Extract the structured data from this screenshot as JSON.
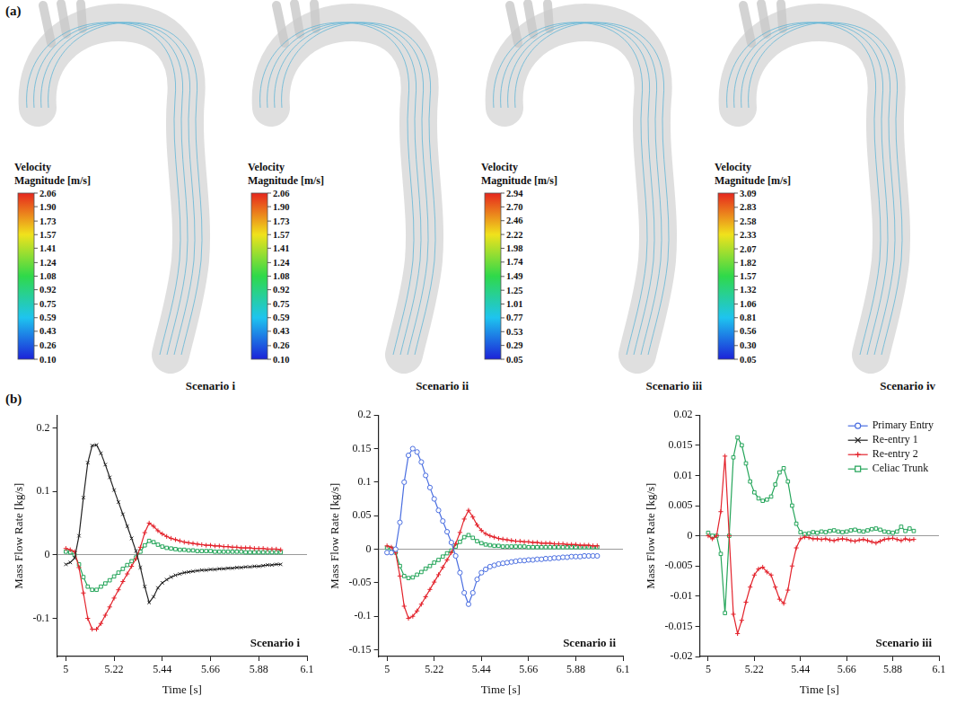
{
  "panel_a": {
    "label": "(a)",
    "scenarios": [
      {
        "title": "Scenario i",
        "colorbar": {
          "title": "Velocity Magnitude [m/s]",
          "range": [
            0.1,
            2.06
          ],
          "ticks": [
            2.06,
            {
              "value": 1.9,
              "label": "1.90"
            },
            1.73,
            1.57,
            1.41,
            1.24,
            1.08,
            0.92,
            0.75,
            0.59,
            0.43,
            0.26,
            {
              "value": 0.1,
              "label": "0.10"
            }
          ]
        }
      },
      {
        "title": "Scenario ii",
        "colorbar": {
          "title": "Velocity Magnitude [m/s]",
          "range": [
            0.1,
            2.06
          ],
          "ticks": [
            2.06,
            {
              "value": 1.9,
              "label": "1.90"
            },
            1.73,
            1.57,
            1.41,
            1.24,
            1.08,
            0.92,
            0.75,
            0.59,
            0.43,
            0.26,
            {
              "value": 0.1,
              "label": "0.10"
            }
          ]
        }
      },
      {
        "title": "Scenario iii",
        "colorbar": {
          "title": "Velocity Magnitude [m/s]",
          "range": [
            0.05,
            2.94
          ],
          "ticks": [
            2.94,
            {
              "value": 2.7,
              "label": "2.70"
            },
            2.46,
            2.22,
            1.98,
            1.74,
            1.49,
            1.25,
            1.01,
            0.77,
            0.53,
            0.29,
            0.05
          ]
        }
      },
      {
        "title": "Scenario iv",
        "colorbar": {
          "title": "Velocity Magnitude [m/s]",
          "range": [
            0.05,
            3.09
          ],
          "ticks": [
            3.09,
            2.83,
            2.58,
            2.33,
            2.07,
            1.82,
            1.57,
            1.32,
            1.06,
            0.81,
            0.56,
            {
              "value": 0.3,
              "label": "0.30"
            },
            0.05
          ]
        }
      }
    ]
  },
  "panel_b": {
    "label": "(b)"
  },
  "legend_entries": [
    "Primary Entry",
    "Re-entry 1",
    "Re-entry 2",
    "Celiac Trunk"
  ],
  "chart_data": [
    {
      "type": "line",
      "title": "Scenario i",
      "x_label": "Time [s]",
      "y_label": "Mass Flow Rate [kg/s]",
      "xlim": [
        4.96,
        6.1
      ],
      "xticks": [
        5,
        5.22,
        5.44,
        5.66,
        5.88,
        6.1
      ],
      "ylim": [
        -0.16,
        0.22
      ],
      "yticks": [
        -0.1,
        0,
        0.1,
        0.2
      ],
      "x": [
        5,
        5.02,
        5.04,
        5.06,
        5.08,
        5.1,
        5.12,
        5.14,
        5.16,
        5.18,
        5.2,
        5.22,
        5.24,
        5.26,
        5.28,
        5.3,
        5.32,
        5.34,
        5.36,
        5.38,
        5.4,
        5.42,
        5.44,
        5.46,
        5.48,
        5.5,
        5.52,
        5.54,
        5.56,
        5.58,
        5.6,
        5.62,
        5.64,
        5.66,
        5.68,
        5.7,
        5.72,
        5.74,
        5.76,
        5.78,
        5.8,
        5.82,
        5.84,
        5.86,
        5.88,
        5.9,
        5.92,
        5.94,
        5.96,
        5.98
      ],
      "series": [
        {
          "name": "Re-entry 1",
          "color": "#222222",
          "marker": "x",
          "values": [
            -0.015,
            -0.012,
            -0.005,
            0.03,
            0.09,
            0.145,
            0.172,
            0.173,
            0.16,
            0.142,
            0.122,
            0.102,
            0.083,
            0.064,
            0.045,
            0.026,
            0.006,
            -0.02,
            -0.05,
            -0.075,
            -0.066,
            -0.052,
            -0.044,
            -0.039,
            -0.035,
            -0.032,
            -0.03,
            -0.028,
            -0.027,
            -0.026,
            -0.025,
            -0.024,
            -0.024,
            -0.023,
            -0.023,
            -0.022,
            -0.022,
            -0.021,
            -0.021,
            -0.02,
            -0.02,
            -0.019,
            -0.019,
            -0.018,
            -0.018,
            -0.017,
            -0.016,
            -0.016,
            -0.015,
            -0.015
          ]
        },
        {
          "name": "Re-entry 2",
          "color": "#e3232c",
          "marker": "+",
          "values": [
            0.01,
            0.008,
            0.005,
            -0.02,
            -0.06,
            -0.1,
            -0.117,
            -0.117,
            -0.108,
            -0.095,
            -0.082,
            -0.068,
            -0.055,
            -0.042,
            -0.03,
            -0.018,
            -0.006,
            0.012,
            0.035,
            0.05,
            0.045,
            0.038,
            0.033,
            0.029,
            0.026,
            0.024,
            0.022,
            0.02,
            0.019,
            0.018,
            0.017,
            0.016,
            0.015,
            0.015,
            0.014,
            0.014,
            0.013,
            0.013,
            0.012,
            0.012,
            0.011,
            0.011,
            0.011,
            0.01,
            0.01,
            0.01,
            0.009,
            0.009,
            0.009,
            0.008
          ]
        },
        {
          "name": "Celiac Trunk",
          "color": "#25a55a",
          "marker": "square",
          "values": [
            0.005,
            0.004,
            0,
            -0.015,
            -0.035,
            -0.05,
            -0.055,
            -0.055,
            -0.05,
            -0.045,
            -0.04,
            -0.034,
            -0.028,
            -0.022,
            -0.016,
            -0.01,
            -0.004,
            0.005,
            0.015,
            0.022,
            0.02,
            0.016,
            0.013,
            0.011,
            0.01,
            0.009,
            0.008,
            0.008,
            0.007,
            0.007,
            0.006,
            0.006,
            0.006,
            0.006,
            0.005,
            0.005,
            0.005,
            0.005,
            0.005,
            0.005,
            0.005,
            0.004,
            0.004,
            0.004,
            0.004,
            0.004,
            0.004,
            0.004,
            0.004,
            0.004
          ]
        }
      ]
    },
    {
      "type": "line",
      "title": "Scenario ii",
      "x_label": "Time [s]",
      "y_label": "Mass Flow Rate [kg/s]",
      "xlim": [
        4.96,
        6.1
      ],
      "xticks": [
        5,
        5.22,
        5.44,
        5.66,
        5.88,
        6.1
      ],
      "ylim": [
        -0.16,
        0.2
      ],
      "yticks": [
        -0.15,
        -0.1,
        -0.05,
        0,
        0.05,
        0.1,
        0.15,
        0.2
      ],
      "x": [
        5,
        5.02,
        5.04,
        5.06,
        5.08,
        5.1,
        5.12,
        5.14,
        5.16,
        5.18,
        5.2,
        5.22,
        5.24,
        5.26,
        5.28,
        5.3,
        5.32,
        5.34,
        5.36,
        5.38,
        5.4,
        5.42,
        5.44,
        5.46,
        5.48,
        5.5,
        5.52,
        5.54,
        5.56,
        5.58,
        5.6,
        5.62,
        5.64,
        5.66,
        5.68,
        5.7,
        5.72,
        5.74,
        5.76,
        5.78,
        5.8,
        5.82,
        5.84,
        5.86,
        5.88,
        5.9,
        5.92,
        5.94,
        5.96,
        5.98
      ],
      "series": [
        {
          "name": "Primary Entry",
          "color": "#4a6ee0",
          "marker": "circle",
          "values": [
            -0.005,
            -0.005,
            0,
            0.04,
            0.1,
            0.14,
            0.15,
            0.145,
            0.13,
            0.11,
            0.092,
            0.075,
            0.058,
            0.042,
            0.026,
            0.01,
            -0.01,
            -0.035,
            -0.065,
            -0.082,
            -0.065,
            -0.045,
            -0.035,
            -0.03,
            -0.026,
            -0.024,
            -0.022,
            -0.021,
            -0.02,
            -0.019,
            -0.018,
            -0.017,
            -0.017,
            -0.016,
            -0.016,
            -0.015,
            -0.015,
            -0.014,
            -0.014,
            -0.013,
            -0.013,
            -0.012,
            -0.012,
            -0.011,
            -0.011,
            -0.011,
            -0.01,
            -0.01,
            -0.01,
            -0.01
          ]
        },
        {
          "name": "Re-entry 2",
          "color": "#e3232c",
          "marker": "+",
          "values": [
            0.005,
            0.003,
            -0.005,
            -0.04,
            -0.085,
            -0.103,
            -0.1,
            -0.092,
            -0.082,
            -0.071,
            -0.06,
            -0.049,
            -0.038,
            -0.027,
            -0.016,
            -0.005,
            0.008,
            0.025,
            0.045,
            0.058,
            0.048,
            0.036,
            0.028,
            0.023,
            0.02,
            0.018,
            0.016,
            0.015,
            0.014,
            0.013,
            0.012,
            0.012,
            0.011,
            0.011,
            0.01,
            0.01,
            0.009,
            0.009,
            0.009,
            0.008,
            0.008,
            0.008,
            0.007,
            0.007,
            0.007,
            0.006,
            0.006,
            0.006,
            0.005,
            0.005
          ]
        },
        {
          "name": "Celiac Trunk",
          "color": "#25a55a",
          "marker": "square",
          "values": [
            0.002,
            0.001,
            -0.005,
            -0.025,
            -0.04,
            -0.043,
            -0.042,
            -0.038,
            -0.034,
            -0.029,
            -0.025,
            -0.02,
            -0.016,
            -0.011,
            -0.006,
            -0.002,
            0.004,
            0.011,
            0.018,
            0.021,
            0.017,
            0.012,
            0.009,
            0.007,
            0.006,
            0.005,
            0.005,
            0.004,
            0.004,
            0.004,
            0.004,
            0.004,
            0.004,
            0.003,
            0.003,
            0.003,
            0.003,
            0.003,
            0.003,
            0.003,
            0.003,
            0.003,
            0.003,
            0.003,
            0.003,
            0.003,
            0.003,
            0.003,
            0.003,
            0.003
          ]
        }
      ]
    },
    {
      "type": "line",
      "title": "Scenario iii",
      "x_label": "Time [s]",
      "y_label": "Mass Flow Rate [kg/s]",
      "xlim": [
        4.96,
        6.1
      ],
      "xticks": [
        5,
        5.22,
        5.44,
        5.66,
        5.88,
        6.1
      ],
      "ylim": [
        -0.02,
        0.02
      ],
      "yticks": [
        -0.02,
        -0.015,
        -0.01,
        -0.005,
        0,
        0.005,
        0.01,
        0.015,
        0.02
      ],
      "legend": "upper right",
      "x": [
        5,
        5.02,
        5.04,
        5.06,
        5.08,
        5.1,
        5.12,
        5.14,
        5.16,
        5.18,
        5.2,
        5.22,
        5.24,
        5.26,
        5.28,
        5.3,
        5.32,
        5.34,
        5.36,
        5.38,
        5.4,
        5.42,
        5.44,
        5.46,
        5.48,
        5.5,
        5.52,
        5.54,
        5.56,
        5.58,
        5.6,
        5.62,
        5.64,
        5.66,
        5.68,
        5.7,
        5.72,
        5.74,
        5.76,
        5.78,
        5.8,
        5.82,
        5.84,
        5.86,
        5.88,
        5.9,
        5.92,
        5.94,
        5.96,
        5.98
      ],
      "series": [
        {
          "name": "Re-entry 2",
          "color": "#e3232c",
          "marker": "+",
          "values": [
            0,
            -0.0005,
            0,
            0.004,
            0.0132,
            0,
            -0.013,
            -0.0162,
            -0.014,
            -0.011,
            -0.0085,
            -0.0065,
            -0.0055,
            -0.0052,
            -0.006,
            -0.0065,
            -0.0085,
            -0.0105,
            -0.0112,
            -0.009,
            -0.005,
            -0.002,
            -0.0005,
            -0.0002,
            -0.0003,
            -0.0005,
            -0.0005,
            -0.0006,
            -0.0005,
            -0.0007,
            -0.0008,
            -0.0006,
            -0.0005,
            -0.0006,
            -0.0008,
            -0.0009,
            -0.0007,
            -0.0006,
            -0.0008,
            -0.001,
            -0.0012,
            -0.0009,
            -0.0006,
            -0.0005,
            -0.0004,
            -0.0006,
            -0.0008,
            -0.0005,
            -0.0007,
            -0.0006
          ]
        },
        {
          "name": "Celiac Trunk",
          "color": "#25a55a",
          "marker": "square",
          "values": [
            0.0005,
            0,
            0,
            -0.003,
            -0.0128,
            0,
            0.013,
            0.0163,
            0.015,
            0.012,
            0.009,
            0.0072,
            0.0062,
            0.0058,
            0.006,
            0.0065,
            0.0085,
            0.0105,
            0.0112,
            0.009,
            0.005,
            0.002,
            0.0006,
            0.0003,
            0.0004,
            0.0006,
            0.0005,
            0.0007,
            0.0006,
            0.0008,
            0.0009,
            0.0007,
            0.0006,
            0.0007,
            0.0009,
            0.001,
            0.0008,
            0.0007,
            0.0009,
            0.0011,
            0.0012,
            0.001,
            0.0007,
            0.0006,
            0.0005,
            0.0007,
            0.0015,
            0.0008,
            0.0012,
            0.0008
          ]
        }
      ]
    }
  ]
}
